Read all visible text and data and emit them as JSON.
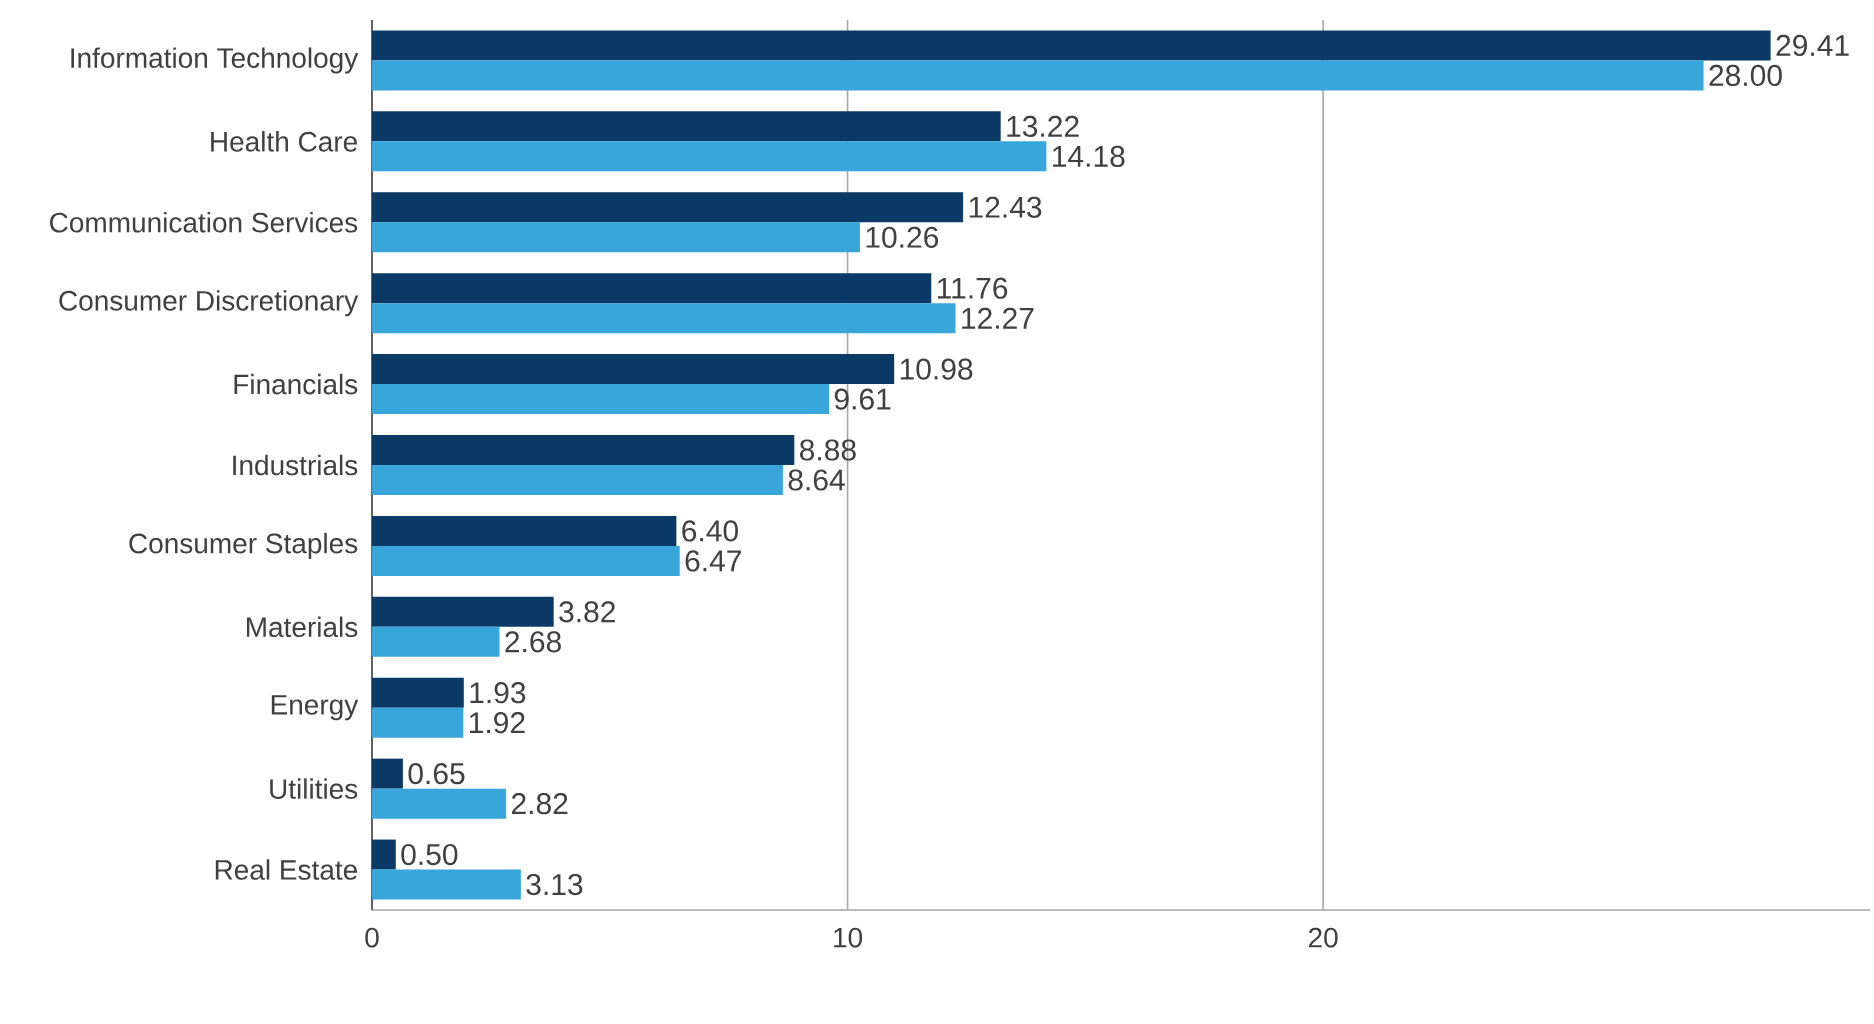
{
  "chart_data": {
    "type": "bar",
    "orientation": "horizontal",
    "categories": [
      "Information Technology",
      "Health Care",
      "Communication Services",
      "Consumer Discretionary",
      "Financials",
      "Industrials",
      "Consumer Staples",
      "Materials",
      "Energy",
      "Utilities",
      "Real Estate"
    ],
    "series": [
      {
        "color": "#0b3a66",
        "values": [
          29.41,
          13.22,
          12.43,
          11.76,
          10.98,
          8.88,
          6.4,
          3.82,
          1.93,
          0.65,
          0.5
        ],
        "value_labels": [
          "29.41",
          "13.22",
          "12.43",
          "11.76",
          "10.98",
          "8.88",
          "6.40",
          "3.82",
          "1.93",
          "0.65",
          "0.50"
        ]
      },
      {
        "color": "#38a6da",
        "values": [
          28.0,
          14.18,
          10.26,
          12.27,
          9.61,
          8.64,
          6.47,
          2.68,
          1.92,
          2.82,
          3.13
        ],
        "value_labels": [
          "28.00",
          "14.18",
          "10.26",
          "12.27",
          "9.61",
          "8.64",
          "6.47",
          "2.68",
          "1.92",
          "2.82",
          "3.13"
        ]
      }
    ],
    "xlim": [
      0,
      31.5
    ],
    "xticks": [
      0,
      10,
      20
    ],
    "grid": "x"
  }
}
